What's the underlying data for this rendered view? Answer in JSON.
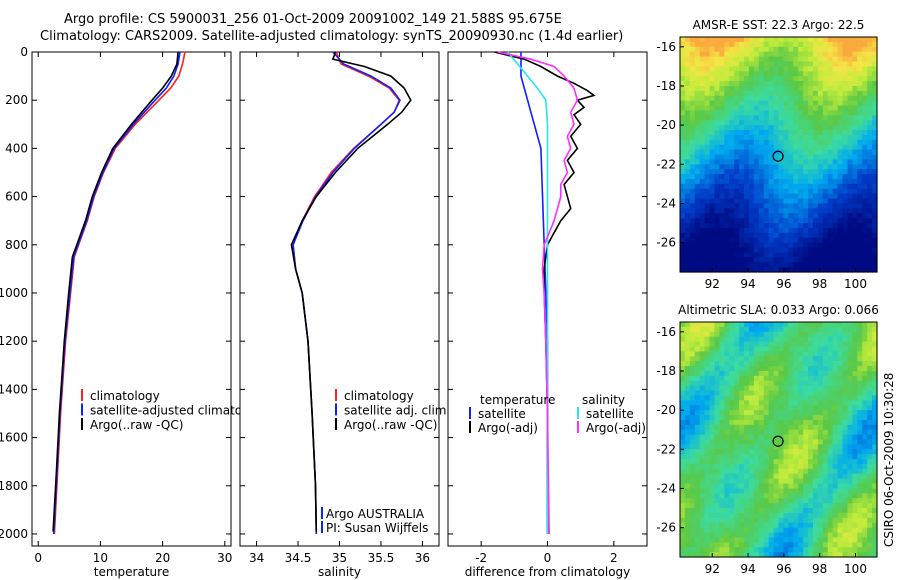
{
  "header": {
    "line1": "Argo profile: CS 5900031_256 01-Oct-2009 20091002_149 21.588S 95.675E",
    "line2": "Climatology: CARS2009. Satellite-adjusted climatology: synTS_20090930.nc (1.4d earlier)"
  },
  "side_label": "CSIRO 06-Oct-2009 10:30:28",
  "colors": {
    "climatology": "#ff2020",
    "satellite": "#1020ff",
    "argo": "#000000",
    "sat_salinity": "#22e8f0",
    "argo_adj_salinity": "#ff30ff"
  },
  "chart_data": [
    {
      "type": "line",
      "name": "temperature-panel",
      "xlabel": "temperature",
      "ylabel": "",
      "xlim": [
        -1,
        31
      ],
      "ylim": [
        2050,
        0
      ],
      "xticks": [
        0,
        10,
        20,
        30
      ],
      "yticks": [
        0,
        200,
        400,
        600,
        800,
        1000,
        1200,
        1400,
        1600,
        1800,
        2000
      ],
      "legend": [
        "climatology",
        "satellite-adjusted climatology",
        "Argo(..raw -QC)"
      ],
      "series": [
        {
          "name": "climatology",
          "color": "#ff2020",
          "y": [
            0,
            50,
            100,
            150,
            200,
            300,
            400,
            500,
            600,
            700,
            800,
            850,
            1000,
            1200,
            1500,
            1750,
            2000
          ],
          "x": [
            23.6,
            23.2,
            22.6,
            21.3,
            19.4,
            15.6,
            12.4,
            10.5,
            9.0,
            7.9,
            6.5,
            5.8,
            5.2,
            4.4,
            3.6,
            3.1,
            2.6
          ]
        },
        {
          "name": "satellite-adjusted climatology",
          "color": "#1020ff",
          "y": [
            0,
            50,
            100,
            150,
            200,
            300,
            400,
            500,
            600,
            700,
            800,
            850,
            1000,
            1200,
            1500,
            1750,
            2000
          ],
          "x": [
            22.8,
            22.5,
            21.8,
            20.6,
            18.8,
            15.3,
            12.2,
            10.4,
            8.9,
            7.8,
            6.4,
            5.7,
            5.1,
            4.3,
            3.5,
            3.0,
            2.5
          ]
        },
        {
          "name": "Argo(..raw -QC)",
          "color": "#000000",
          "y": [
            0,
            50,
            100,
            150,
            200,
            300,
            400,
            500,
            600,
            700,
            800,
            850,
            1000,
            1200,
            1500,
            1750,
            1990
          ],
          "x": [
            22.5,
            22.3,
            21.4,
            20.0,
            18.3,
            15.0,
            12.0,
            10.2,
            8.7,
            7.6,
            6.2,
            5.5,
            4.9,
            4.2,
            3.4,
            2.9,
            2.4
          ]
        }
      ]
    },
    {
      "type": "line",
      "name": "salinity-panel",
      "xlabel": "salinity",
      "ylabel": "",
      "xlim": [
        33.8,
        36.2
      ],
      "ylim": [
        2050,
        0
      ],
      "xticks": [
        34,
        34.5,
        35,
        35.5,
        36
      ],
      "legend": [
        "climatology",
        "satellite adj. clim.",
        "Argo(..raw -QC)"
      ],
      "annotations": [
        "Argo AUSTRALIA",
        "PI: Susan Wijffels"
      ],
      "series": [
        {
          "name": "climatology",
          "color": "#ff2020",
          "y": [
            0,
            50,
            100,
            150,
            200,
            250,
            300,
            400,
            500,
            600,
            700,
            800,
            900,
            1000,
            1200,
            1500,
            1800,
            2000
          ],
          "x": [
            34.96,
            35.02,
            35.35,
            35.6,
            35.72,
            35.66,
            35.5,
            35.17,
            34.9,
            34.7,
            34.55,
            34.44,
            34.47,
            34.55,
            34.62,
            34.67,
            34.71,
            34.72
          ]
        },
        {
          "name": "satellite adj. clim.",
          "color": "#1020ff",
          "y": [
            0,
            50,
            100,
            150,
            200,
            250,
            300,
            400,
            500,
            600,
            700,
            800,
            900,
            1000,
            1200,
            1500,
            1800,
            2000
          ],
          "x": [
            34.92,
            35.05,
            35.38,
            35.62,
            35.73,
            35.66,
            35.5,
            35.18,
            34.92,
            34.71,
            34.56,
            34.44,
            34.47,
            34.55,
            34.62,
            34.67,
            34.71,
            34.72
          ]
        },
        {
          "name": "Argo(..raw -QC)",
          "color": "#000000",
          "y": [
            0,
            30,
            60,
            100,
            150,
            200,
            250,
            300,
            400,
            500,
            600,
            700,
            800,
            900,
            1000,
            1200,
            1500,
            1800,
            1990
          ],
          "x": [
            34.95,
            34.92,
            35.3,
            35.62,
            35.78,
            35.86,
            35.75,
            35.58,
            35.22,
            34.95,
            34.72,
            34.55,
            34.42,
            34.47,
            34.55,
            34.62,
            34.67,
            34.71,
            34.72
          ]
        }
      ]
    },
    {
      "type": "line",
      "name": "difference-panel",
      "xlabel": "difference from climatology",
      "ylabel": "",
      "xlim": [
        -3,
        3
      ],
      "ylim": [
        2050,
        0
      ],
      "xticks": [
        -2,
        0,
        2
      ],
      "legend": [
        "temperature",
        "satellite",
        "Argo(-adj)",
        "salinity",
        "satellite",
        "Argo(-adj)"
      ],
      "series": [
        {
          "name": "temperature satellite",
          "color": "#1020ff",
          "y": [
            0,
            100,
            200,
            400,
            800,
            1200,
            1600,
            2000
          ],
          "x": [
            -0.8,
            -0.8,
            -0.6,
            -0.2,
            -0.1,
            0.0,
            0.0,
            0.0
          ]
        },
        {
          "name": "temperature Argo(-adj)",
          "color": "#000000",
          "y": [
            0,
            30,
            60,
            100,
            130,
            160,
            180,
            200,
            230,
            260,
            300,
            350,
            400,
            450,
            500,
            550,
            600,
            650,
            700,
            750,
            800,
            900,
            1000,
            1200,
            1500,
            2000
          ],
          "x": [
            -1.6,
            -0.7,
            -0.2,
            0.3,
            0.8,
            1.2,
            1.4,
            0.9,
            1.1,
            0.8,
            1.0,
            0.7,
            0.9,
            0.6,
            0.8,
            0.5,
            0.6,
            0.7,
            0.4,
            0.2,
            0.0,
            -0.1,
            -0.1,
            -0.05,
            0.0,
            0.0
          ]
        },
        {
          "name": "salinity satellite",
          "color": "#22e8f0",
          "y": [
            0,
            50,
            100,
            150,
            200,
            300,
            500,
            800,
            1200,
            2000
          ],
          "x": [
            -1.2,
            -0.9,
            -0.6,
            -0.3,
            -0.05,
            0.0,
            0.0,
            0.0,
            0.0,
            0.0
          ]
        },
        {
          "name": "salinity Argo(-adj)",
          "color": "#ff30ff",
          "y": [
            0,
            30,
            60,
            100,
            150,
            200,
            250,
            300,
            350,
            400,
            450,
            500,
            550,
            600,
            700,
            800,
            900,
            1000,
            1200,
            1500,
            2000
          ],
          "x": [
            -1.5,
            -0.5,
            0.2,
            0.5,
            0.8,
            0.9,
            0.7,
            0.8,
            0.6,
            0.7,
            0.5,
            0.6,
            0.4,
            0.4,
            0.2,
            -0.1,
            -0.15,
            -0.1,
            -0.05,
            0.0,
            0.05
          ]
        }
      ]
    },
    {
      "type": "heatmap",
      "name": "sst-map",
      "title": "AMSR-E SST: 22.3 Argo: 22.5",
      "xlim": [
        90.2,
        101.2
      ],
      "ylim": [
        -27.5,
        -15.5
      ],
      "xticks": [
        92,
        94,
        96,
        98,
        100
      ],
      "yticks": [
        -16,
        -18,
        -20,
        -22,
        -24,
        -26
      ],
      "marker": {
        "lon": 95.675,
        "lat": -21.588
      }
    },
    {
      "type": "heatmap",
      "name": "sla-map",
      "title": "Altimetric SLA: 0.033 Argo: 0.066",
      "xlim": [
        90.2,
        101.2
      ],
      "ylim": [
        -27.5,
        -15.5
      ],
      "xticks": [
        92,
        94,
        96,
        98,
        100
      ],
      "yticks": [
        -16,
        -18,
        -20,
        -22,
        -24,
        -26
      ],
      "marker": {
        "lon": 95.675,
        "lat": -21.588
      }
    }
  ]
}
